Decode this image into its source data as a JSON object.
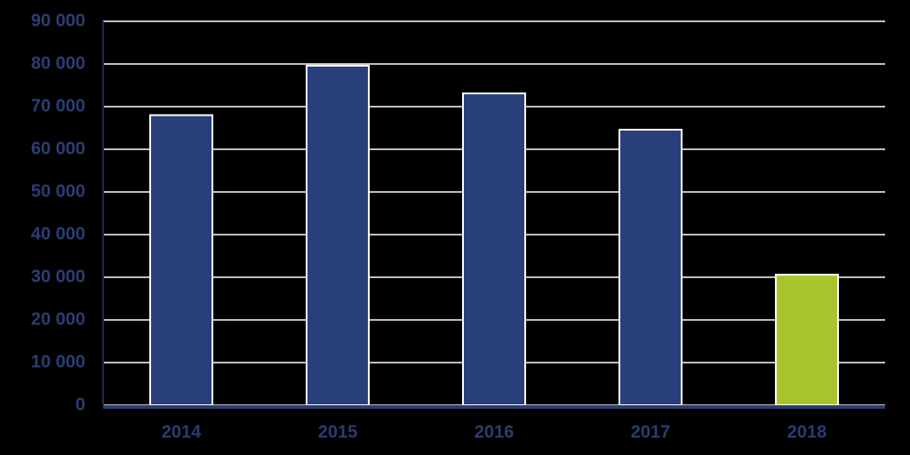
{
  "chart_data": {
    "type": "bar",
    "categories": [
      "2014",
      "2015",
      "2016",
      "2017",
      "2018"
    ],
    "values": [
      68000,
      79600,
      73100,
      64600,
      30600
    ],
    "colors": [
      "#283f7c",
      "#283f7c",
      "#283f7c",
      "#283f7c",
      "#a8c62b"
    ],
    "ylim": [
      0,
      90000
    ],
    "yticks": [
      0,
      {
        "value": 10000,
        "label": "10 000"
      },
      {
        "value": 20000,
        "label": "20 000"
      },
      {
        "value": 30000,
        "label": "30 000"
      },
      {
        "value": 40000,
        "label": "40 000"
      },
      {
        "value": 50000,
        "label": "50 000"
      },
      {
        "value": 60000,
        "label": "60 000"
      },
      {
        "value": 70000,
        "label": "70 000"
      },
      {
        "value": 80000,
        "label": "80 000"
      },
      {
        "value": 90000,
        "label": "90 000"
      }
    ],
    "grid": true
  }
}
